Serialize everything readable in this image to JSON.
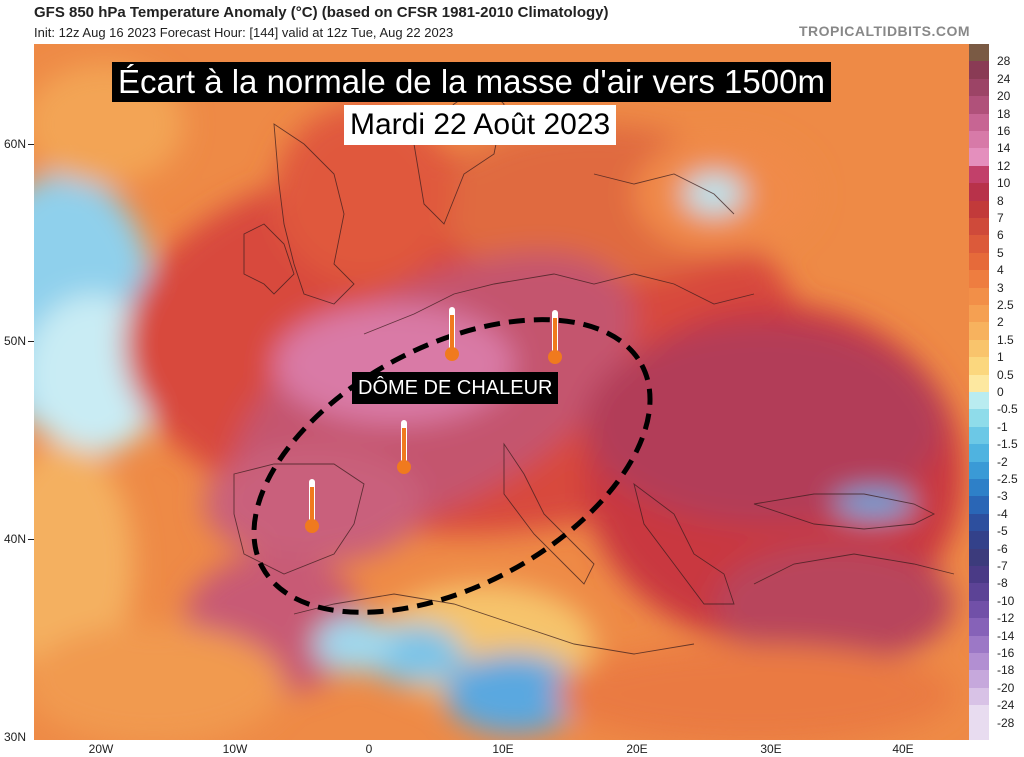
{
  "header": {
    "title": "GFS 850 hPa Temperature Anomaly (°C) (based on CFSR 1981-2010 Climatology)",
    "subtitle": "Init: 12z Aug 16 2023   Forecast Hour: [144]   valid at 12z Tue, Aug 22 2023",
    "site": "TROPICALTIDBITS.COM"
  },
  "overlay": {
    "headline": "Écart à la normale de la masse d'air vers 1500m",
    "date": "Mardi 22 Août 2023",
    "dome_label": "DÔME DE CHALEUR"
  },
  "axes": {
    "lat_labels": [
      "60N",
      "50N",
      "40N",
      "30N"
    ],
    "lon_labels": [
      "20W",
      "10W",
      "0",
      "10E",
      "20E",
      "30E",
      "40E"
    ]
  },
  "colorbar": {
    "labels": [
      "28",
      "24",
      "20",
      "18",
      "16",
      "14",
      "12",
      "10",
      "8",
      "7",
      "6",
      "5",
      "4",
      "3",
      "2.5",
      "2",
      "1.5",
      "1",
      "0.5",
      "0",
      "-0.5",
      "-1",
      "-1.5",
      "-2",
      "-2.5",
      "-3",
      "-4",
      "-5",
      "-6",
      "-7",
      "-8",
      "-10",
      "-12",
      "-14",
      "-16",
      "-18",
      "-20",
      "-24",
      "-28"
    ],
    "colors": [
      "#7a5a44",
      "#8a3b55",
      "#9c4466",
      "#b0517a",
      "#c76593",
      "#d77aa8",
      "#e48fbd",
      "#c2406a",
      "#b8324a",
      "#c23a3a",
      "#cf4a3a",
      "#dc5a3a",
      "#e66a3a",
      "#ee7d40",
      "#f28f48",
      "#f5a052",
      "#f7b25e",
      "#f9c46c",
      "#fbd77e",
      "#fde8a0",
      "#b9ecf0",
      "#8fdcea",
      "#6cc8e6",
      "#4fb3e0",
      "#3a9ad6",
      "#2e80c8",
      "#2a66b6",
      "#2d4f9e",
      "#33418a",
      "#3c3b7c",
      "#4a3a86",
      "#5c4396",
      "#7150a8",
      "#8662b8",
      "#9c78c6",
      "#b28fd2",
      "#c6a8dc",
      "#d8c2e6",
      "#e8dcf0"
    ]
  },
  "thermometer_icons": [
    {
      "name": "thermometer-icon-paris"
    },
    {
      "name": "thermometer-icon-germany"
    },
    {
      "name": "thermometer-icon-southfrance"
    },
    {
      "name": "thermometer-icon-spain"
    }
  ]
}
